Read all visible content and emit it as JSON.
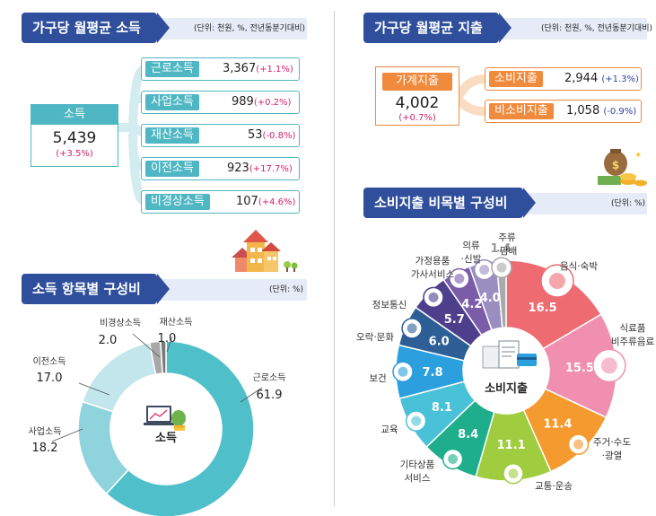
{
  "colors": {
    "navy": "#2f4f9c",
    "teal": "#4fb6c3",
    "orange": "#f08a3c",
    "magenta": "#d21f6a"
  },
  "income_section": {
    "title": "가구당 월평균 소득",
    "unit": "(단위: 천원, %, 전년동분기대비)",
    "total": {
      "label": "소득",
      "value": "5,439",
      "change": "(+3.5%)"
    },
    "items": [
      {
        "label": "근로소득",
        "value": "3,367",
        "change": "(+1.1%)"
      },
      {
        "label": "사업소득",
        "value": "989",
        "change": "(+0.2%)"
      },
      {
        "label": "재산소득",
        "value": "53",
        "change": "(-0.8%)"
      },
      {
        "label": "이전소득",
        "value": "923",
        "change": "(+17.7%)"
      },
      {
        "label": "비경상소득",
        "value": "107",
        "change": "(+4.6%)"
      }
    ]
  },
  "spending_section": {
    "title": "가구당 월평균 지출",
    "unit": "(단위: 천원, %, 전년동분기대비)",
    "total": {
      "label": "가계지출",
      "value": "4,002",
      "change": "(+0.7%)"
    },
    "items": [
      {
        "label": "소비지출",
        "value": "2,944",
        "change": "(+1.3%)"
      },
      {
        "label": "비소비지출",
        "value": "1,058",
        "change": "(-0.9%)"
      }
    ]
  },
  "chart_data": [
    {
      "type": "pie",
      "title": "소득 항목별 구성비",
      "unit": "(단위: %)",
      "center_label": "소득",
      "slices": [
        {
          "label": "근로소득",
          "value": 61.9,
          "color": "#4fc0ca"
        },
        {
          "label": "사업소득",
          "value": 18.2,
          "color": "#8fd3dc"
        },
        {
          "label": "이전소득",
          "value": 17.0,
          "color": "#c3e6ec"
        },
        {
          "label": "비경상소득",
          "value": 2.0,
          "color": "#a8a8a8"
        },
        {
          "label": "재산소득",
          "value": 1.0,
          "color": "#7a7a7a"
        }
      ]
    },
    {
      "type": "pie",
      "title": "소비지출 비목별 구성비",
      "unit": "(단위: %)",
      "center_label": "소비지출",
      "slices": [
        {
          "label": "음식·숙박",
          "value": 16.5,
          "color": "#ee6b72"
        },
        {
          "label": "식료품 비주류음료",
          "value": 15.5,
          "color": "#f08fb0"
        },
        {
          "label": "주거·수도 ·광열",
          "value": 11.4,
          "color": "#f59a2e"
        },
        {
          "label": "교통·운송",
          "value": 11.1,
          "color": "#9fcd3f"
        },
        {
          "label": "기타상품 서비스",
          "value": 8.4,
          "color": "#1fae8c"
        },
        {
          "label": "교육",
          "value": 8.1,
          "color": "#49c1d6"
        },
        {
          "label": "보건",
          "value": 7.8,
          "color": "#2c9fde"
        },
        {
          "label": "오락·문화",
          "value": 6.0,
          "color": "#2d5f96"
        },
        {
          "label": "정보통신",
          "value": 5.7,
          "color": "#4d3f8c"
        },
        {
          "label": "가정용품 가사서비스",
          "value": 4.2,
          "color": "#7b5ca8"
        },
        {
          "label": "의류 ·신발",
          "value": 4.0,
          "color": "#9a8ec0"
        },
        {
          "label": "주류 ·담배",
          "value": 1.4,
          "color": "#a9a9a9"
        }
      ]
    }
  ]
}
